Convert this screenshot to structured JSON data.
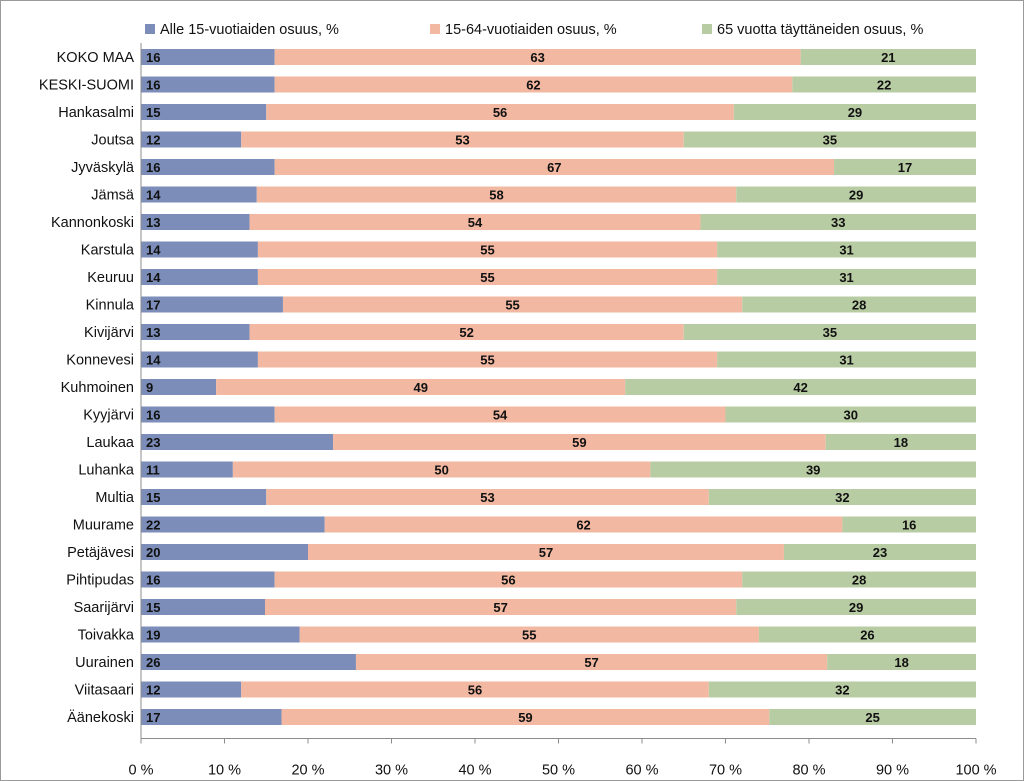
{
  "chart_data": {
    "type": "bar",
    "orientation": "horizontal",
    "stacked": "percent",
    "categories": [
      "KOKO MAA",
      "KESKI-SUOMI",
      "Hankasalmi",
      "Joutsa",
      "Jyväskylä",
      "Jämsä",
      "Kannonkoski",
      "Karstula",
      "Keuruu",
      "Kinnula",
      "Kivijärvi",
      "Konnevesi",
      "Kuhmoinen",
      "Kyyjärvi",
      "Laukaa",
      "Luhanka",
      "Multia",
      "Muurame",
      "Petäjävesi",
      "Pihtipudas",
      "Saarijärvi",
      "Toivakka",
      "Uurainen",
      "Viitasaari",
      "Äänekoski"
    ],
    "series": [
      {
        "name": "Alle 15-vuotiaiden osuus, %",
        "color": "#7b8db8",
        "values": [
          16,
          16,
          15,
          12,
          16,
          14,
          13,
          14,
          14,
          17,
          13,
          14,
          9,
          16,
          23,
          11,
          15,
          22,
          20,
          16,
          15,
          19,
          26,
          12,
          17
        ]
      },
      {
        "name": "15-64-vuotiaiden osuus, %",
        "color": "#f2b8a2",
        "values": [
          63,
          62,
          56,
          53,
          67,
          58,
          54,
          55,
          55,
          55,
          52,
          55,
          49,
          54,
          59,
          50,
          53,
          62,
          57,
          56,
          57,
          55,
          57,
          56,
          59
        ]
      },
      {
        "name": "65 vuotta täyttäneiden osuus, %",
        "color": "#b8cca4",
        "values": [
          21,
          22,
          29,
          35,
          17,
          29,
          33,
          31,
          31,
          28,
          35,
          31,
          42,
          30,
          18,
          39,
          32,
          16,
          23,
          28,
          29,
          26,
          18,
          32,
          25
        ]
      }
    ],
    "x_ticks": [
      "0 %",
      "10 %",
      "20 %",
      "30 %",
      "40 %",
      "50 %",
      "60 %",
      "70 %",
      "80 %",
      "90 %",
      "100 %"
    ],
    "xlim": [
      0,
      100
    ],
    "legend_position": "top",
    "grid": false,
    "title": "",
    "xlabel": "",
    "ylabel": ""
  }
}
